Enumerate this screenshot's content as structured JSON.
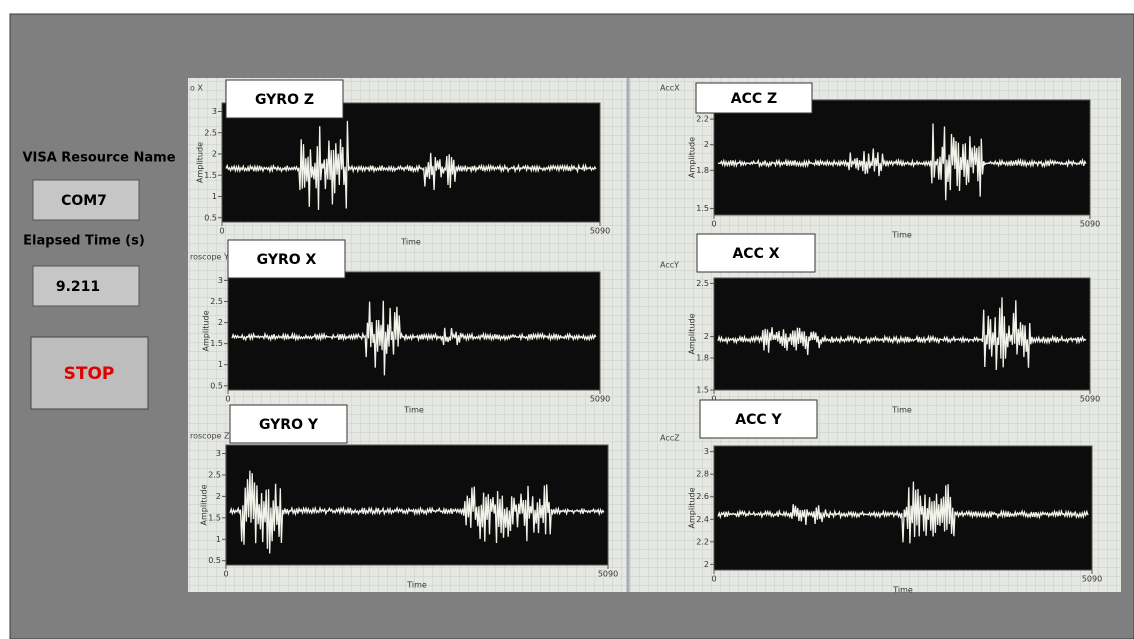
{
  "panel": {
    "visa_label": "VISA Resource Name",
    "visa_value": "COM7",
    "elapsed_label": "Elapsed Time (s)",
    "elapsed_value": "9.211",
    "stop": "STOP"
  },
  "charts": [
    {
      "label": "GYRO Z",
      "tab": "o X",
      "y_axis_label": "Amplitude",
      "x_axis_label": "Time",
      "ylim": [
        0.4,
        3.2
      ],
      "yticks": [
        3,
        2.5,
        2,
        1.5,
        1,
        0.5
      ],
      "xlim": [
        0,
        5090
      ],
      "xticks": [
        0,
        5090
      ]
    },
    {
      "label": "ACC Z",
      "tab": "AccX",
      "y_axis_label": "Amplitude",
      "x_axis_label": "Time",
      "ylim": [
        1.45,
        2.35
      ],
      "yticks": [
        2.2,
        2,
        1.8,
        1.5
      ],
      "xlim": [
        0,
        5090
      ],
      "xticks": [
        0,
        5090
      ]
    },
    {
      "label": "GYRO X",
      "tab": "roscope Y",
      "y_axis_label": "Amplitude",
      "x_axis_label": "Time",
      "ylim": [
        0.4,
        3.2
      ],
      "yticks": [
        3,
        2.5,
        2,
        1.5,
        1,
        0.5
      ],
      "xlim": [
        0,
        5090
      ],
      "xticks": [
        0,
        5090
      ]
    },
    {
      "label": "ACC X",
      "tab": "AccY",
      "y_axis_label": "Amplitude",
      "x_axis_label": "Time",
      "ylim": [
        1.5,
        2.55
      ],
      "yticks": [
        2.5,
        2,
        1.8,
        1.5
      ],
      "xlim": [
        0,
        5090
      ],
      "xticks": [
        0,
        5090
      ]
    },
    {
      "label": "GYRO Y",
      "tab": "roscope Z",
      "y_axis_label": "Amplitude",
      "x_axis_label": "Time",
      "ylim": [
        0.4,
        3.2
      ],
      "yticks": [
        3,
        2.5,
        2,
        1.5,
        1,
        0.5
      ],
      "xlim": [
        0,
        5090
      ],
      "xticks": [
        0,
        5090
      ]
    },
    {
      "label": "ACC Y",
      "tab": "AccZ",
      "y_axis_label": "Amplitude",
      "x_axis_label": "Time",
      "ylim": [
        1.95,
        3.05
      ],
      "yticks": [
        3,
        2.8,
        2.6,
        2.4,
        2.2,
        2
      ],
      "xlim": [
        0,
        5090
      ],
      "xticks": [
        0,
        5090
      ]
    }
  ]
}
